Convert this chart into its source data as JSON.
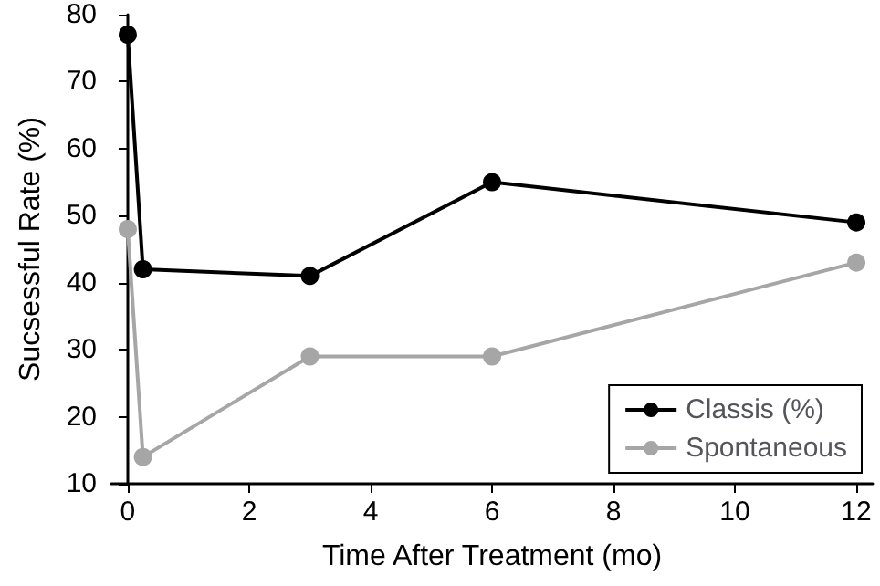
{
  "chart_data": {
    "type": "line",
    "xlabel": "Time After Treatment (mo)",
    "ylabel": "Sucsessful Rate (%)",
    "x": [
      0,
      0.25,
      3,
      6,
      12
    ],
    "series": [
      {
        "name": "Classis (%)",
        "color": "#000000",
        "values": [
          77,
          42,
          41,
          55,
          49
        ]
      },
      {
        "name": "Spontaneous",
        "color": "#a6a6a6",
        "values": [
          48,
          14,
          29,
          29,
          43
        ]
      }
    ],
    "xlim": [
      -0.27,
      12.27
    ],
    "xticks": [
      0,
      2,
      4,
      6,
      8,
      10,
      12
    ],
    "ylim": [
      10,
      80
    ],
    "yticks": [
      10,
      20,
      30,
      40,
      50,
      60,
      70,
      80
    ],
    "grid": false,
    "legend": "bottom right",
    "marker": "circle",
    "line_style": "solid"
  }
}
